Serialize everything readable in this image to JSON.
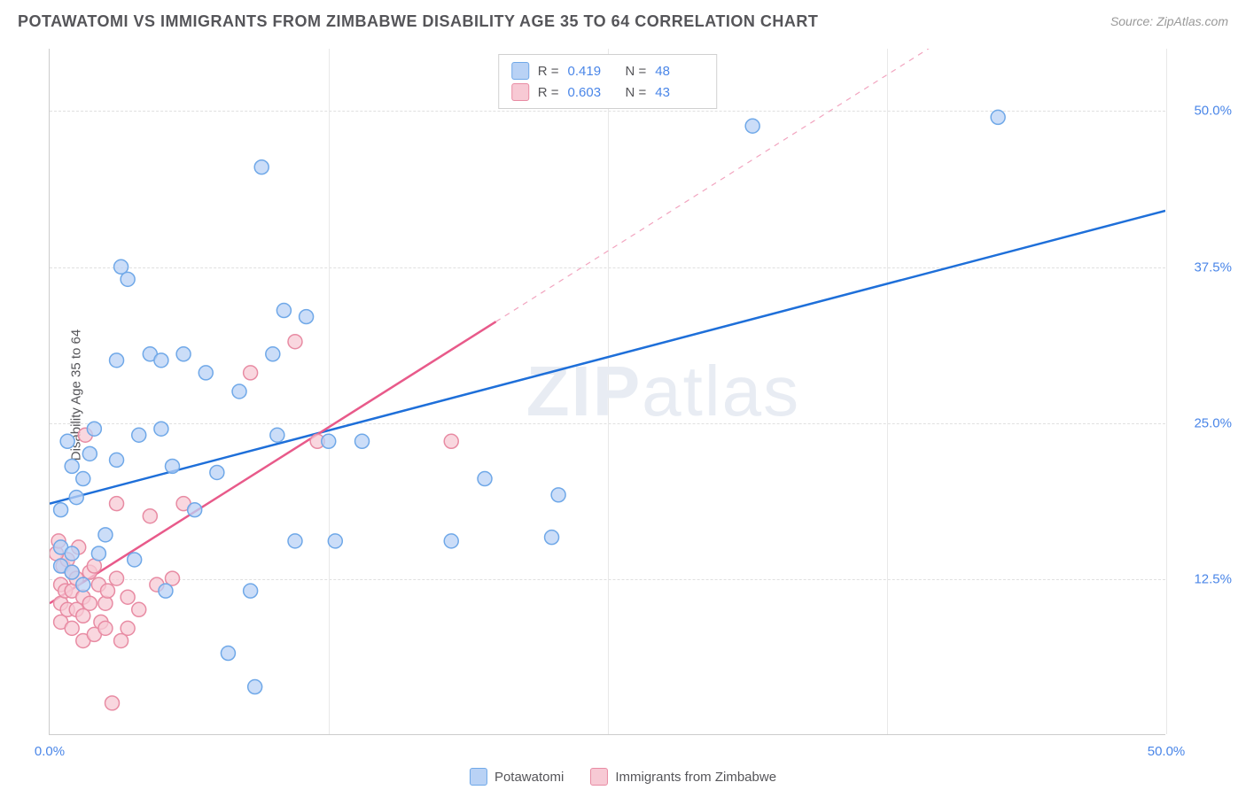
{
  "title": "POTAWATOMI VS IMMIGRANTS FROM ZIMBABWE DISABILITY AGE 35 TO 64 CORRELATION CHART",
  "source": "Source: ZipAtlas.com",
  "watermark": "ZIPatlas",
  "chart": {
    "type": "scatter-correlation",
    "xlim": [
      0,
      50
    ],
    "ylim": [
      0,
      55
    ],
    "xticks": [
      0.0,
      50.0
    ],
    "xtick_labels": [
      "0.0%",
      "50.0%"
    ],
    "yticks": [
      12.5,
      25.0,
      37.5,
      50.0
    ],
    "ytick_labels": [
      "12.5%",
      "25.0%",
      "37.5%",
      "50.0%"
    ],
    "ylabel": "Disability Age 35 to 64",
    "grid_h": [
      12.5,
      25.0,
      37.5,
      50.0
    ],
    "grid_v": [
      12.5,
      25.0,
      37.5,
      50.0
    ],
    "background_color": "#ffffff",
    "grid_color": "#e0e0e0",
    "axis_color": "#cccccc",
    "marker_radius": 8,
    "marker_stroke_width": 1.5,
    "line_width": 2.5,
    "series": [
      {
        "name": "Potawatomi",
        "R": "0.419",
        "N": "48",
        "fill": "#b9d2f5",
        "stroke": "#6fa8e8",
        "line_color": "#1e6fd9",
        "line_dash_extent": 50,
        "trend_y_at_x0": 18.5,
        "trend_y_at_x50": 42.0,
        "points": [
          [
            0.5,
            15.0
          ],
          [
            0.5,
            13.5
          ],
          [
            0.8,
            23.5
          ],
          [
            1.0,
            21.5
          ],
          [
            1.0,
            13.0
          ],
          [
            1.2,
            19.0
          ],
          [
            1.5,
            12.0
          ],
          [
            1.5,
            20.5
          ],
          [
            1.8,
            22.5
          ],
          [
            2.0,
            24.5
          ],
          [
            2.2,
            14.5
          ],
          [
            3.0,
            22.0
          ],
          [
            3.0,
            30.0
          ],
          [
            3.2,
            37.5
          ],
          [
            3.5,
            36.5
          ],
          [
            4.0,
            24.0
          ],
          [
            4.5,
            30.5
          ],
          [
            5.0,
            24.5
          ],
          [
            5.0,
            30.0
          ],
          [
            5.2,
            11.5
          ],
          [
            5.5,
            21.5
          ],
          [
            6.0,
            30.5
          ],
          [
            6.5,
            18.0
          ],
          [
            7.0,
            29.0
          ],
          [
            7.5,
            21.0
          ],
          [
            8.0,
            6.5
          ],
          [
            8.5,
            27.5
          ],
          [
            9.0,
            11.5
          ],
          [
            9.2,
            3.8
          ],
          [
            9.5,
            45.5
          ],
          [
            10.0,
            30.5
          ],
          [
            10.2,
            24.0
          ],
          [
            10.5,
            34.0
          ],
          [
            11.0,
            15.5
          ],
          [
            11.5,
            33.5
          ],
          [
            12.5,
            23.5
          ],
          [
            12.8,
            15.5
          ],
          [
            14.0,
            23.5
          ],
          [
            18.0,
            15.5
          ],
          [
            19.5,
            20.5
          ],
          [
            22.5,
            15.8
          ],
          [
            22.8,
            19.2
          ],
          [
            31.5,
            48.8
          ],
          [
            42.5,
            49.5
          ],
          [
            0.5,
            18.0
          ],
          [
            1.0,
            14.5
          ],
          [
            2.5,
            16.0
          ],
          [
            3.8,
            14.0
          ]
        ]
      },
      {
        "name": "Immigrants from Zimbabwe",
        "R": "0.603",
        "N": "43",
        "fill": "#f7c9d4",
        "stroke": "#e88ba3",
        "line_color": "#e85a8a",
        "line_dash_extent": 20,
        "trend_y_at_x0": 10.5,
        "trend_y_at_x50": 67.0,
        "points": [
          [
            0.5,
            12.0
          ],
          [
            0.5,
            10.5
          ],
          [
            0.5,
            9.0
          ],
          [
            0.6,
            13.5
          ],
          [
            0.7,
            11.5
          ],
          [
            0.8,
            10.0
          ],
          [
            0.8,
            14.0
          ],
          [
            1.0,
            11.5
          ],
          [
            1.0,
            13.0
          ],
          [
            1.0,
            8.5
          ],
          [
            1.2,
            12.5
          ],
          [
            1.2,
            10.0
          ],
          [
            1.5,
            9.5
          ],
          [
            1.5,
            11.0
          ],
          [
            1.5,
            7.5
          ],
          [
            1.6,
            24.0
          ],
          [
            1.8,
            10.5
          ],
          [
            1.8,
            13.0
          ],
          [
            2.0,
            8.0
          ],
          [
            2.0,
            13.5
          ],
          [
            2.2,
            12.0
          ],
          [
            2.3,
            9.0
          ],
          [
            2.5,
            10.5
          ],
          [
            2.5,
            8.5
          ],
          [
            2.8,
            2.5
          ],
          [
            3.0,
            12.5
          ],
          [
            3.0,
            18.5
          ],
          [
            3.5,
            11.0
          ],
          [
            3.5,
            8.5
          ],
          [
            4.0,
            10.0
          ],
          [
            4.5,
            17.5
          ],
          [
            4.8,
            12.0
          ],
          [
            5.5,
            12.5
          ],
          [
            6.0,
            18.5
          ],
          [
            9.0,
            29.0
          ],
          [
            11.0,
            31.5
          ],
          [
            12.0,
            23.5
          ],
          [
            18.0,
            23.5
          ],
          [
            0.3,
            14.5
          ],
          [
            0.4,
            15.5
          ],
          [
            1.3,
            15.0
          ],
          [
            2.6,
            11.5
          ],
          [
            3.2,
            7.5
          ]
        ]
      }
    ],
    "legend_top_labels": {
      "R": "R =",
      "N": "N ="
    },
    "legend_bottom_labels": [
      "Potawatomi",
      "Immigrants from Zimbabwe"
    ]
  }
}
